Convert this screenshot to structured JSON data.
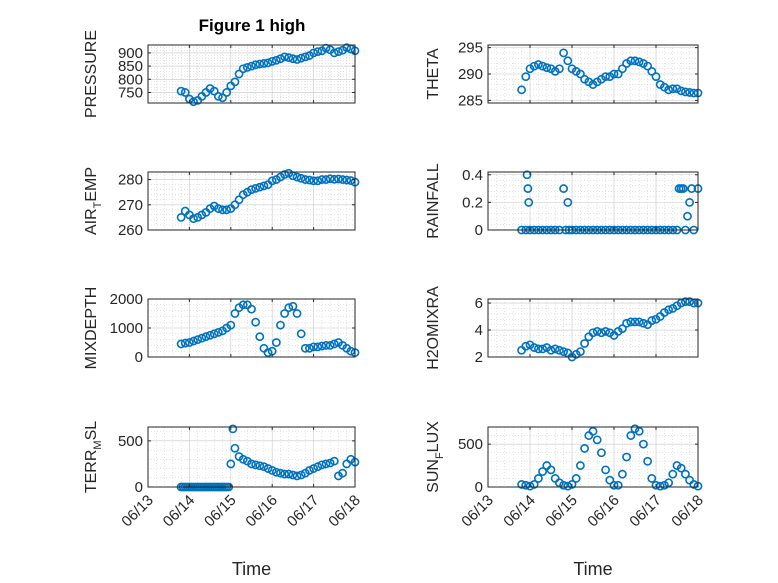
{
  "figure": {
    "title": "Figure 1 high",
    "marker_color": "#0072BD"
  },
  "chart_data": [
    {
      "type": "scatter",
      "ylabel": "PRESSURE",
      "xlabel": "",
      "xlim": [
        0,
        5
      ],
      "ylim": [
        710,
        930
      ],
      "yticks": [
        750,
        800,
        850,
        900
      ],
      "xticks": [
        0,
        1,
        2,
        3,
        4,
        5
      ],
      "xticklabels": [
        "06/13",
        "06/14",
        "06/15",
        "06/16",
        "06/17",
        "06/18"
      ],
      "grid": true,
      "x": [
        0.8,
        0.9,
        1.0,
        1.1,
        1.2,
        1.3,
        1.4,
        1.5,
        1.6,
        1.7,
        1.8,
        1.9,
        2.0,
        2.1,
        2.2,
        2.3,
        2.4,
        2.5,
        2.6,
        2.7,
        2.8,
        2.9,
        3.0,
        3.1,
        3.2,
        3.3,
        3.4,
        3.5,
        3.6,
        3.7,
        3.8,
        3.9,
        4.0,
        4.1,
        4.2,
        4.3,
        4.4,
        4.5,
        4.6,
        4.7,
        4.8,
        4.9,
        5.0
      ],
      "values": [
        755,
        750,
        725,
        715,
        720,
        735,
        750,
        765,
        755,
        735,
        730,
        750,
        775,
        790,
        820,
        840,
        845,
        850,
        855,
        858,
        860,
        862,
        868,
        872,
        878,
        885,
        882,
        878,
        875,
        880,
        885,
        890,
        900,
        905,
        908,
        918,
        912,
        900,
        905,
        910,
        920,
        915,
        908
      ]
    },
    {
      "type": "scatter",
      "ylabel": "THETA",
      "xlabel": "",
      "xlim": [
        0,
        5
      ],
      "ylim": [
        284.5,
        295.5
      ],
      "yticks": [
        285,
        290,
        295
      ],
      "xticks": [
        0,
        1,
        2,
        3,
        4,
        5
      ],
      "xticklabels": [
        "06/13",
        "06/14",
        "06/15",
        "06/16",
        "06/17",
        "06/18"
      ],
      "grid": true,
      "x": [
        0.8,
        0.9,
        1.0,
        1.1,
        1.2,
        1.3,
        1.4,
        1.5,
        1.6,
        1.7,
        1.8,
        1.9,
        2.0,
        2.1,
        2.2,
        2.3,
        2.4,
        2.5,
        2.6,
        2.7,
        2.8,
        2.9,
        3.0,
        3.1,
        3.2,
        3.3,
        3.4,
        3.5,
        3.6,
        3.7,
        3.8,
        3.9,
        4.0,
        4.1,
        4.2,
        4.3,
        4.4,
        4.5,
        4.6,
        4.7,
        4.8,
        4.9,
        5.0
      ],
      "values": [
        287,
        289.5,
        291,
        291.5,
        291.8,
        291.5,
        291.2,
        291.0,
        290.5,
        291.0,
        294,
        292.5,
        291,
        290.5,
        290,
        289,
        288.5,
        288,
        288.5,
        289,
        289.5,
        289.5,
        290,
        290,
        291,
        292,
        292.5,
        292.5,
        292.3,
        292.0,
        291.5,
        290.5,
        289.5,
        288,
        287.5,
        287,
        287.2,
        287.2,
        286.8,
        286.6,
        286.5,
        286.4,
        286.4
      ]
    },
    {
      "type": "scatter",
      "ylabel": "AIR_TEMP",
      "xlabel": "",
      "xlim": [
        0,
        5
      ],
      "ylim": [
        260,
        283
      ],
      "yticks": [
        260,
        270,
        280
      ],
      "xticks": [
        0,
        1,
        2,
        3,
        4,
        5
      ],
      "xticklabels": [
        "06/13",
        "06/14",
        "06/15",
        "06/16",
        "06/17",
        "06/18"
      ],
      "grid": true,
      "x": [
        0.8,
        0.9,
        1.0,
        1.1,
        1.2,
        1.3,
        1.4,
        1.5,
        1.6,
        1.7,
        1.8,
        1.9,
        2.0,
        2.1,
        2.2,
        2.3,
        2.4,
        2.5,
        2.6,
        2.7,
        2.8,
        2.9,
        3.0,
        3.1,
        3.2,
        3.3,
        3.4,
        3.5,
        3.6,
        3.7,
        3.8,
        3.9,
        4.0,
        4.1,
        4.2,
        4.3,
        4.4,
        4.5,
        4.6,
        4.7,
        4.8,
        4.9,
        5.0
      ],
      "values": [
        265,
        267.5,
        266,
        264.5,
        265,
        266,
        267,
        268.5,
        269.5,
        268.5,
        268,
        268,
        268.5,
        270,
        272,
        274,
        275,
        276,
        276.5,
        277,
        277.5,
        278,
        279.5,
        280,
        281,
        282,
        282.5,
        281.5,
        281,
        280.5,
        280,
        279.8,
        279.5,
        279.5,
        280,
        280,
        280.3,
        280.1,
        280.2,
        280,
        279.8,
        279.6,
        279
      ]
    },
    {
      "type": "scatter",
      "ylabel": "RAINFALL",
      "xlabel": "",
      "xlim": [
        0,
        5
      ],
      "ylim": [
        0,
        0.42
      ],
      "yticks": [
        0,
        0.2,
        0.4
      ],
      "yticklabels": [
        "0",
        "0.2",
        "0.4"
      ],
      "xticks": [
        0,
        1,
        2,
        3,
        4,
        5
      ],
      "xticklabels": [
        "06/13",
        "06/14",
        "06/15",
        "06/16",
        "06/17",
        "06/18"
      ],
      "grid": true,
      "x": [
        0.8,
        0.9,
        0.93,
        0.95,
        0.97,
        1.0,
        1.1,
        1.2,
        1.3,
        1.4,
        1.5,
        1.6,
        1.7,
        1.8,
        1.85,
        1.9,
        1.93,
        2.0,
        2.1,
        2.2,
        2.3,
        2.4,
        2.5,
        2.6,
        2.7,
        2.8,
        2.9,
        3.0,
        3.1,
        3.2,
        3.3,
        3.4,
        3.5,
        3.6,
        3.7,
        3.8,
        3.9,
        4.0,
        4.1,
        4.2,
        4.3,
        4.4,
        4.5,
        4.55,
        4.6,
        4.65,
        4.7,
        4.75,
        4.8,
        4.85,
        4.9,
        5.0
      ],
      "values": [
        0,
        0,
        0.4,
        0.3,
        0.2,
        0,
        0,
        0,
        0,
        0,
        0,
        0,
        0,
        0.3,
        0,
        0.2,
        0,
        0,
        0,
        0,
        0,
        0,
        0,
        0,
        0,
        0,
        0,
        0,
        0,
        0,
        0,
        0,
        0,
        0,
        0,
        0,
        0,
        0,
        0,
        0,
        0,
        0,
        0,
        0.3,
        0.3,
        0.3,
        0,
        0.1,
        0.2,
        0.3,
        0,
        0.3
      ]
    },
    {
      "type": "scatter",
      "ylabel": "MIXDEPTH",
      "xlabel": "",
      "xlim": [
        0,
        5
      ],
      "ylim": [
        0,
        2000
      ],
      "yticks": [
        0,
        1000,
        2000
      ],
      "xticks": [
        0,
        1,
        2,
        3,
        4,
        5
      ],
      "xticklabels": [
        "06/13",
        "06/14",
        "06/15",
        "06/16",
        "06/17",
        "06/18"
      ],
      "grid": true,
      "x": [
        0.8,
        0.9,
        1.0,
        1.1,
        1.2,
        1.3,
        1.4,
        1.5,
        1.6,
        1.7,
        1.8,
        1.9,
        2.0,
        2.1,
        2.2,
        2.3,
        2.4,
        2.5,
        2.6,
        2.7,
        2.8,
        2.9,
        3.0,
        3.1,
        3.2,
        3.3,
        3.4,
        3.5,
        3.6,
        3.7,
        3.8,
        3.9,
        4.0,
        4.1,
        4.2,
        4.3,
        4.4,
        4.5,
        4.6,
        4.7,
        4.8,
        4.9,
        5.0
      ],
      "values": [
        450,
        480,
        500,
        550,
        600,
        650,
        700,
        750,
        800,
        850,
        900,
        1000,
        1100,
        1500,
        1700,
        1800,
        1800,
        1650,
        1200,
        700,
        300,
        150,
        200,
        500,
        1100,
        1500,
        1700,
        1750,
        1500,
        800,
        300,
        300,
        350,
        350,
        380,
        400,
        400,
        450,
        500,
        400,
        300,
        200,
        150
      ]
    },
    {
      "type": "scatter",
      "ylabel": "H2OMIXRA",
      "xlabel": "",
      "xlim": [
        0,
        5
      ],
      "ylim": [
        2,
        6.3
      ],
      "yticks": [
        2,
        4,
        6
      ],
      "xticks": [
        0,
        1,
        2,
        3,
        4,
        5
      ],
      "xticklabels": [
        "06/13",
        "06/14",
        "06/15",
        "06/16",
        "06/17",
        "06/18"
      ],
      "grid": true,
      "x": [
        0.8,
        0.9,
        1.0,
        1.1,
        1.2,
        1.3,
        1.4,
        1.5,
        1.6,
        1.7,
        1.8,
        1.9,
        2.0,
        2.1,
        2.2,
        2.3,
        2.4,
        2.5,
        2.6,
        2.7,
        2.8,
        2.9,
        3.0,
        3.1,
        3.2,
        3.3,
        3.4,
        3.5,
        3.6,
        3.7,
        3.8,
        3.9,
        4.0,
        4.1,
        4.2,
        4.3,
        4.4,
        4.5,
        4.6,
        4.7,
        4.8,
        4.9,
        5.0
      ],
      "values": [
        2.5,
        2.8,
        2.9,
        2.7,
        2.6,
        2.6,
        2.7,
        2.5,
        2.6,
        2.5,
        2.4,
        2.3,
        2.0,
        2.2,
        2.4,
        3.0,
        3.5,
        3.8,
        3.9,
        3.8,
        3.9,
        3.8,
        3.6,
        3.9,
        4.1,
        4.5,
        4.6,
        4.6,
        4.6,
        4.5,
        4.4,
        4.7,
        4.8,
        5.0,
        5.3,
        5.5,
        5.6,
        5.8,
        6.0,
        6.1,
        6.1,
        6.0,
        6.0
      ]
    },
    {
      "type": "scatter",
      "ylabel": "TERR_MSL",
      "xlabel": "Time",
      "xlim": [
        0,
        5
      ],
      "ylim": [
        0,
        650
      ],
      "yticks": [
        0,
        500
      ],
      "xticks": [
        0,
        1,
        2,
        3,
        4,
        5
      ],
      "xticklabels": [
        "06/13",
        "06/14",
        "06/15",
        "06/16",
        "06/17",
        "06/18"
      ],
      "grid": true,
      "x": [
        0.8,
        0.85,
        0.9,
        0.95,
        1.0,
        1.05,
        1.1,
        1.15,
        1.2,
        1.25,
        1.3,
        1.35,
        1.4,
        1.45,
        1.5,
        1.55,
        1.6,
        1.65,
        1.7,
        1.75,
        1.8,
        1.85,
        1.9,
        1.95,
        2.0,
        2.05,
        2.1,
        2.2,
        2.3,
        2.4,
        2.5,
        2.6,
        2.7,
        2.8,
        2.9,
        3.0,
        3.1,
        3.2,
        3.3,
        3.4,
        3.5,
        3.6,
        3.7,
        3.8,
        3.9,
        4.0,
        4.1,
        4.2,
        4.3,
        4.4,
        4.5,
        4.6,
        4.7,
        4.8,
        4.9,
        5.0
      ],
      "values": [
        0,
        0,
        0,
        0,
        0,
        0,
        0,
        0,
        0,
        0,
        0,
        0,
        0,
        0,
        0,
        0,
        0,
        0,
        0,
        0,
        0,
        0,
        0,
        0,
        250,
        630,
        420,
        330,
        300,
        280,
        250,
        240,
        230,
        220,
        200,
        180,
        160,
        150,
        140,
        140,
        130,
        120,
        130,
        150,
        180,
        200,
        220,
        240,
        250,
        260,
        280,
        120,
        150,
        250,
        300,
        270
      ]
    },
    {
      "type": "scatter",
      "ylabel": "SUN_FLUX",
      "xlabel": "Time",
      "xlim": [
        0,
        5
      ],
      "ylim": [
        0,
        700
      ],
      "yticks": [
        0,
        500
      ],
      "xticks": [
        0,
        1,
        2,
        3,
        4,
        5
      ],
      "xticklabels": [
        "06/13",
        "06/14",
        "06/15",
        "06/16",
        "06/17",
        "06/18"
      ],
      "grid": true,
      "x": [
        0.8,
        0.9,
        1.0,
        1.1,
        1.2,
        1.3,
        1.4,
        1.5,
        1.6,
        1.7,
        1.8,
        1.9,
        2.0,
        2.1,
        2.2,
        2.3,
        2.4,
        2.5,
        2.6,
        2.7,
        2.8,
        2.9,
        3.0,
        3.1,
        3.2,
        3.3,
        3.4,
        3.5,
        3.6,
        3.7,
        3.8,
        3.9,
        4.0,
        4.1,
        4.2,
        4.3,
        4.4,
        4.5,
        4.6,
        4.7,
        4.8,
        4.9,
        5.0
      ],
      "values": [
        30,
        20,
        10,
        30,
        100,
        180,
        250,
        200,
        100,
        50,
        20,
        10,
        30,
        100,
        250,
        450,
        600,
        650,
        550,
        400,
        200,
        80,
        20,
        20,
        150,
        350,
        600,
        680,
        650,
        500,
        300,
        100,
        20,
        10,
        20,
        50,
        150,
        250,
        220,
        150,
        80,
        30,
        10
      ]
    }
  ]
}
